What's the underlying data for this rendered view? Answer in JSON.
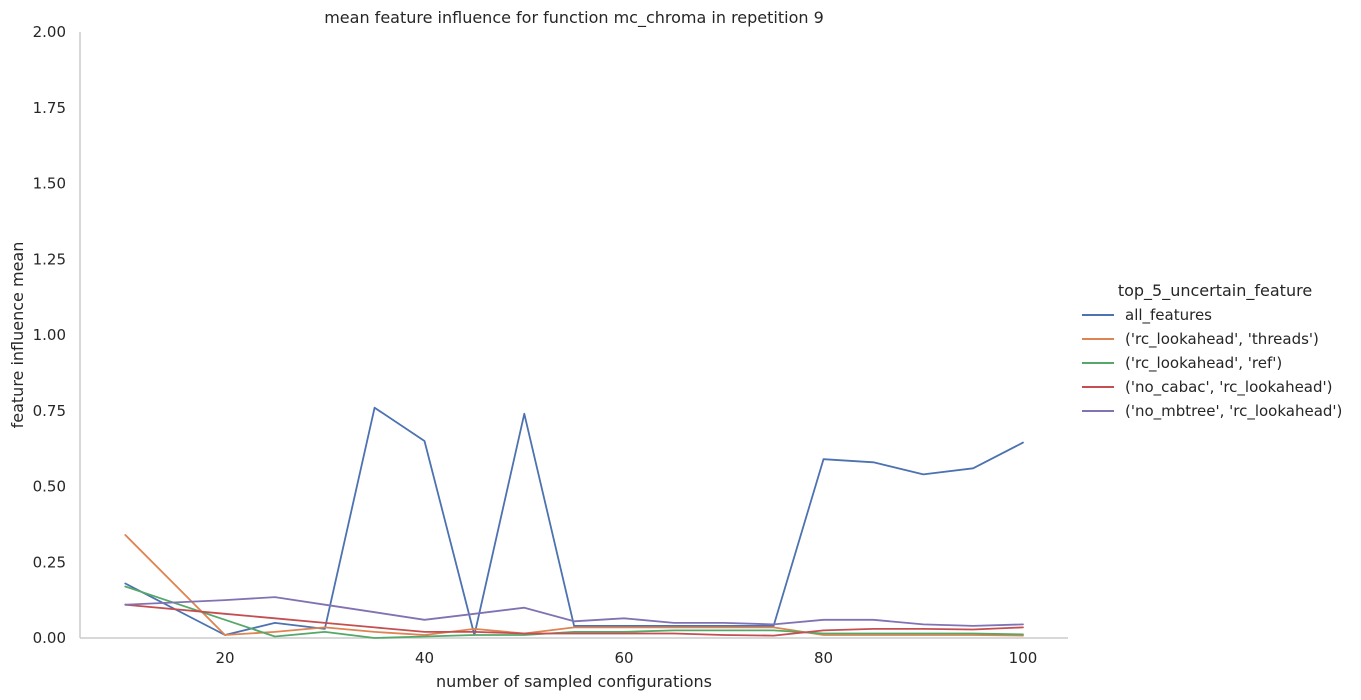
{
  "chart_data": {
    "type": "line",
    "title": "mean feature influence for function mc_chroma in repetition 9",
    "xlabel": "number of sampled configurations",
    "ylabel": "feature influence mean",
    "xlim": [
      5,
      105
    ],
    "ylim": [
      0,
      2.0
    ],
    "xticks": [
      20,
      40,
      60,
      80,
      100
    ],
    "yticks": [
      0.0,
      0.25,
      0.5,
      0.75,
      1.0,
      1.25,
      1.5,
      1.75,
      2.0
    ],
    "ytick_labels": [
      "0.00",
      "0.25",
      "0.50",
      "0.75",
      "1.00",
      "1.25",
      "1.50",
      "1.75",
      "2.00"
    ],
    "grid": false,
    "legend": {
      "title": "top_5_uncertain_feature",
      "placement": "right"
    },
    "x": [
      10,
      20,
      25,
      30,
      35,
      40,
      45,
      50,
      55,
      60,
      65,
      70,
      75,
      80,
      85,
      90,
      95,
      100
    ],
    "series": [
      {
        "name": "all_features",
        "color": "#4c72b0",
        "values": [
          0.18,
          0.01,
          0.05,
          0.03,
          0.76,
          0.65,
          0.01,
          0.74,
          0.04,
          0.04,
          0.04,
          0.04,
          0.04,
          0.59,
          0.58,
          0.54,
          0.56,
          0.645
        ]
      },
      {
        "name": "('rc_lookahead', 'threads')",
        "color": "#dd8452",
        "values": [
          0.34,
          0.01,
          0.02,
          0.035,
          0.02,
          0.01,
          0.03,
          0.015,
          0.035,
          0.035,
          0.035,
          0.035,
          0.035,
          0.01,
          0.01,
          0.01,
          0.01,
          0.008
        ]
      },
      {
        "name": "('rc_lookahead', 'ref')",
        "color": "#55a868",
        "values": [
          0.17,
          0.06,
          0.005,
          0.02,
          0.0,
          0.005,
          0.01,
          0.01,
          0.02,
          0.02,
          0.025,
          0.025,
          0.025,
          0.015,
          0.015,
          0.015,
          0.015,
          0.012
        ]
      },
      {
        "name": "('no_cabac', 'rc_lookahead')",
        "color": "#c44e52",
        "values": [
          0.11,
          0.08,
          0.065,
          0.05,
          0.035,
          0.02,
          0.02,
          0.015,
          0.015,
          0.015,
          0.015,
          0.01,
          0.008,
          0.025,
          0.03,
          0.03,
          0.028,
          0.035
        ]
      },
      {
        "name": "('no_mbtree', 'rc_lookahead')",
        "color": "#8172b3",
        "values": [
          0.11,
          0.125,
          0.135,
          0.11,
          0.085,
          0.06,
          0.08,
          0.1,
          0.055,
          0.065,
          0.05,
          0.05,
          0.045,
          0.06,
          0.06,
          0.045,
          0.04,
          0.045
        ]
      }
    ]
  }
}
